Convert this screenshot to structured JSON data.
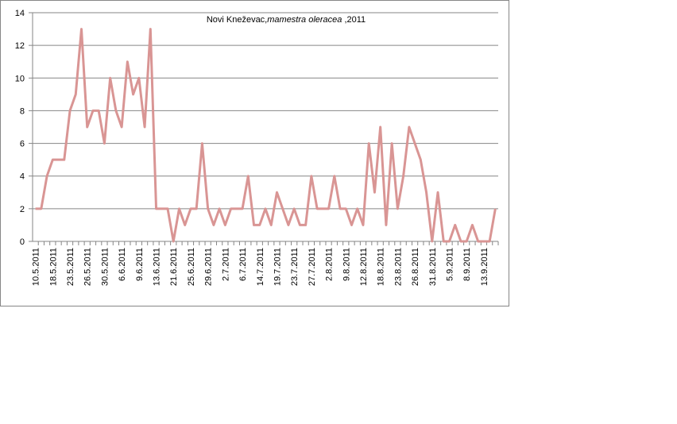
{
  "chart_data": {
    "type": "line",
    "title": [
      "Novi Kneževac,",
      "mamestra oleracea",
      " ,2011"
    ],
    "categories": [
      "10.5.2011",
      null,
      null,
      "18.5.2011",
      null,
      null,
      "23.5.2011",
      null,
      null,
      "26.5.2011",
      null,
      null,
      "30.5.2011",
      null,
      null,
      "6.6.2011",
      null,
      null,
      "9.6.2011",
      null,
      null,
      "13.6.2011",
      null,
      null,
      "21.6.2011",
      null,
      null,
      "25.6.2011",
      null,
      null,
      "29.6.2011",
      null,
      null,
      "2.7.2011",
      null,
      null,
      "6.7.2011",
      null,
      null,
      "14.7.2011",
      null,
      null,
      "19.7.2011",
      null,
      null,
      "23.7.2011",
      null,
      null,
      "27.7.2011",
      null,
      null,
      "2.8.2011",
      null,
      null,
      "9.8.2011",
      null,
      null,
      "12.8.2011",
      null,
      null,
      "18.8.2011",
      null,
      null,
      "23.8.2011",
      null,
      null,
      "26.8.2011",
      null,
      null,
      "31.8.2011",
      null,
      null,
      "5.9.2011",
      null,
      null,
      "8.9.2011",
      null,
      null,
      "13.9.2011",
      null,
      null
    ],
    "series": [
      {
        "color": "#d99594",
        "values": [
          2,
          2,
          4,
          5,
          5,
          5,
          8,
          9,
          13,
          7,
          8,
          8,
          6,
          10,
          8,
          7,
          11,
          9,
          10,
          7,
          13,
          2,
          2,
          2,
          0,
          2,
          1,
          2,
          2,
          6,
          2,
          1,
          2,
          1,
          2,
          2,
          2,
          4,
          1,
          1,
          2,
          1,
          3,
          2,
          1,
          2,
          1,
          1,
          4,
          2,
          2,
          2,
          4,
          2,
          2,
          1,
          2,
          1,
          6,
          3,
          7,
          1,
          6,
          2,
          4,
          7,
          6,
          5,
          3,
          0,
          3,
          0,
          0,
          1,
          0,
          0,
          1,
          0,
          0,
          0,
          2
        ]
      }
    ],
    "ylim": [
      0,
      14
    ],
    "yticks": [
      0,
      2,
      4,
      6,
      8,
      10,
      12,
      14
    ],
    "grid": true
  }
}
